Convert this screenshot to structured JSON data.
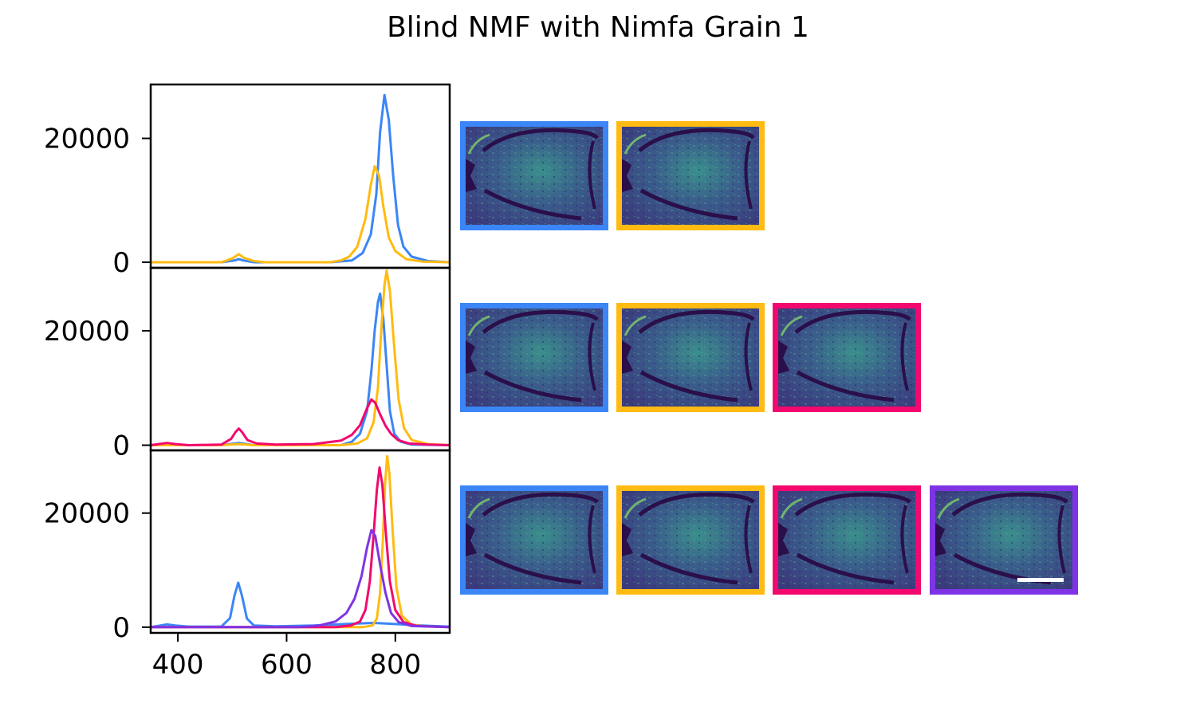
{
  "title": "Blind NMF with Nimfa Grain 1",
  "colors": {
    "blue": "#3b86f7",
    "gold": "#ffbb11",
    "pink": "#f2086e",
    "purple": "#7e34e4"
  },
  "chart_data": [
    {
      "type": "line",
      "xlim": [
        350,
        900
      ],
      "ylim": [
        -900,
        28700
      ],
      "yticks": [
        "0",
        "20000"
      ],
      "series": [
        {
          "color": "blue",
          "points": [
            [
              350,
              0
            ],
            [
              480,
              0
            ],
            [
              505,
              300
            ],
            [
              512,
              500
            ],
            [
              520,
              300
            ],
            [
              540,
              0
            ],
            [
              680,
              0
            ],
            [
              720,
              300
            ],
            [
              740,
              1500
            ],
            [
              755,
              4500
            ],
            [
              765,
              11000
            ],
            [
              772,
              21000
            ],
            [
              780,
              27000
            ],
            [
              788,
              23000
            ],
            [
              796,
              14000
            ],
            [
              805,
              6000
            ],
            [
              815,
              2500
            ],
            [
              830,
              900
            ],
            [
              860,
              200
            ],
            [
              900,
              0
            ]
          ]
        },
        {
          "color": "gold",
          "points": [
            [
              350,
              0
            ],
            [
              480,
              0
            ],
            [
              500,
              600
            ],
            [
              512,
              1300
            ],
            [
              522,
              700
            ],
            [
              540,
              200
            ],
            [
              560,
              0
            ],
            [
              680,
              0
            ],
            [
              700,
              300
            ],
            [
              715,
              900
            ],
            [
              730,
              2500
            ],
            [
              745,
              7000
            ],
            [
              755,
              12500
            ],
            [
              762,
              15500
            ],
            [
              770,
              14000
            ],
            [
              778,
              9000
            ],
            [
              788,
              4000
            ],
            [
              800,
              1800
            ],
            [
              820,
              500
            ],
            [
              850,
              100
            ],
            [
              900,
              0
            ]
          ]
        }
      ]
    },
    {
      "type": "line",
      "xlim": [
        350,
        900
      ],
      "ylim": [
        -900,
        31000
      ],
      "yticks": [
        "0",
        "20000"
      ],
      "series": [
        {
          "color": "blue",
          "points": [
            [
              350,
              0
            ],
            [
              480,
              0
            ],
            [
              512,
              400
            ],
            [
              540,
              0
            ],
            [
              700,
              0
            ],
            [
              720,
              600
            ],
            [
              735,
              2000
            ],
            [
              748,
              6000
            ],
            [
              756,
              13000
            ],
            [
              762,
              20000
            ],
            [
              768,
              25000
            ],
            [
              772,
              26500
            ],
            [
              778,
              22000
            ],
            [
              784,
              14000
            ],
            [
              790,
              6000
            ],
            [
              798,
              2000
            ],
            [
              810,
              600
            ],
            [
              830,
              100
            ],
            [
              900,
              0
            ]
          ]
        },
        {
          "color": "gold",
          "points": [
            [
              350,
              0
            ],
            [
              480,
              0
            ],
            [
              512,
              200
            ],
            [
              540,
              0
            ],
            [
              700,
              0
            ],
            [
              730,
              300
            ],
            [
              748,
              1200
            ],
            [
              760,
              4000
            ],
            [
              768,
              10000
            ],
            [
              774,
              20000
            ],
            [
              780,
              28000
            ],
            [
              784,
              30500
            ],
            [
              790,
              27000
            ],
            [
              798,
              17000
            ],
            [
              806,
              8000
            ],
            [
              816,
              3000
            ],
            [
              830,
              900
            ],
            [
              860,
              200
            ],
            [
              900,
              0
            ]
          ]
        },
        {
          "color": "pink",
          "points": [
            [
              350,
              0
            ],
            [
              365,
              200
            ],
            [
              380,
              400
            ],
            [
              395,
              200
            ],
            [
              420,
              0
            ],
            [
              480,
              100
            ],
            [
              498,
              1100
            ],
            [
              506,
              2300
            ],
            [
              512,
              2900
            ],
            [
              518,
              2300
            ],
            [
              528,
              900
            ],
            [
              545,
              300
            ],
            [
              580,
              100
            ],
            [
              650,
              200
            ],
            [
              700,
              800
            ],
            [
              720,
              1800
            ],
            [
              735,
              3500
            ],
            [
              748,
              6500
            ],
            [
              756,
              8000
            ],
            [
              763,
              7400
            ],
            [
              772,
              5400
            ],
            [
              782,
              3400
            ],
            [
              792,
              2000
            ],
            [
              805,
              900
            ],
            [
              825,
              300
            ],
            [
              860,
              100
            ],
            [
              900,
              0
            ]
          ]
        }
      ]
    },
    {
      "type": "line",
      "xlim": [
        350,
        900
      ],
      "ylim": [
        -1000,
        31000
      ],
      "yticks": [
        "0",
        "20000"
      ],
      "xticks": [
        "400",
        "600",
        "800"
      ],
      "series": [
        {
          "color": "blue",
          "points": [
            [
              350,
              0
            ],
            [
              365,
              250
            ],
            [
              380,
              500
            ],
            [
              395,
              300
            ],
            [
              420,
              100
            ],
            [
              480,
              100
            ],
            [
              496,
              1600
            ],
            [
              504,
              5500
            ],
            [
              511,
              7800
            ],
            [
              518,
              5500
            ],
            [
              527,
              1500
            ],
            [
              540,
              300
            ],
            [
              580,
              150
            ],
            [
              650,
              300
            ],
            [
              720,
              600
            ],
            [
              760,
              750
            ],
            [
              800,
              550
            ],
            [
              860,
              250
            ],
            [
              900,
              100
            ]
          ]
        },
        {
          "color": "gold",
          "points": [
            [
              350,
              0
            ],
            [
              740,
              0
            ],
            [
              758,
              300
            ],
            [
              766,
              1500
            ],
            [
              772,
              6000
            ],
            [
              777,
              15000
            ],
            [
              781,
              25000
            ],
            [
              785,
              30000
            ],
            [
              789,
              27000
            ],
            [
              795,
              17000
            ],
            [
              802,
              7000
            ],
            [
              812,
              2000
            ],
            [
              830,
              400
            ],
            [
              860,
              100
            ],
            [
              900,
              0
            ]
          ]
        },
        {
          "color": "pink",
          "points": [
            [
              350,
              0
            ],
            [
              690,
              0
            ],
            [
              718,
              300
            ],
            [
              735,
              1000
            ],
            [
              745,
              3000
            ],
            [
              753,
              8000
            ],
            [
              760,
              16000
            ],
            [
              766,
              24000
            ],
            [
              771,
              28000
            ],
            [
              776,
              25000
            ],
            [
              783,
              16000
            ],
            [
              790,
              8000
            ],
            [
              800,
              3000
            ],
            [
              815,
              900
            ],
            [
              840,
              200
            ],
            [
              900,
              0
            ]
          ]
        },
        {
          "color": "purple",
          "points": [
            [
              350,
              0
            ],
            [
              620,
              0
            ],
            [
              660,
              300
            ],
            [
              690,
              1000
            ],
            [
              710,
              2500
            ],
            [
              725,
              5000
            ],
            [
              738,
              9000
            ],
            [
              748,
              14000
            ],
            [
              756,
              17000
            ],
            [
              763,
              16000
            ],
            [
              772,
              11000
            ],
            [
              782,
              6000
            ],
            [
              792,
              2500
            ],
            [
              806,
              900
            ],
            [
              830,
              200
            ],
            [
              900,
              0
            ]
          ]
        }
      ]
    }
  ],
  "maps": [
    [
      "blue",
      "gold"
    ],
    [
      "blue",
      "gold",
      "pink"
    ],
    [
      "blue",
      "gold",
      "pink",
      "purple"
    ]
  ]
}
